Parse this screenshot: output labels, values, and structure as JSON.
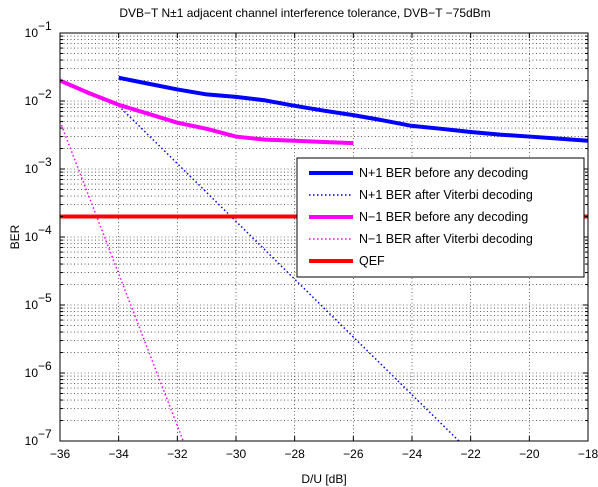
{
  "chart_data": {
    "type": "line",
    "title": "DVB−T N±1 adjacent channel interference tolerance, DVB−T −75dBm",
    "xlabel": "D/U [dB]",
    "ylabel": "BER",
    "x_scale": "linear",
    "y_scale": "log",
    "xlim": [
      -36,
      -18
    ],
    "ylim": [
      1e-07,
      0.1
    ],
    "grid": true,
    "legend_position": "right",
    "x_ticks": [
      "−36",
      "−34",
      "−32",
      "−30",
      "−28",
      "−26",
      "−24",
      "−22",
      "−20",
      "−18"
    ],
    "y_ticks": [
      {
        "base": "10",
        "exp": "−7"
      },
      {
        "base": "10",
        "exp": "−6"
      },
      {
        "base": "10",
        "exp": "−5"
      },
      {
        "base": "10",
        "exp": "−4"
      },
      {
        "base": "10",
        "exp": "−3"
      },
      {
        "base": "10",
        "exp": "−2"
      },
      {
        "base": "10",
        "exp": "−1"
      }
    ],
    "series": [
      {
        "name": "N+1 BER before any decoding",
        "color": "#0000ff",
        "style": "solid",
        "width": 4,
        "x": [
          -34,
          -33,
          -32,
          -31,
          -30,
          -29,
          -28,
          -27,
          -26,
          -25,
          -24,
          -23,
          -22,
          -21,
          -20,
          -19,
          -18
        ],
        "y": [
          0.022,
          0.018,
          0.0148,
          0.0125,
          0.0115,
          0.0102,
          0.0085,
          0.0072,
          0.0062,
          0.0052,
          0.0043,
          0.0039,
          0.0035,
          0.0032,
          0.003,
          0.0028,
          0.0026
        ]
      },
      {
        "name": "N+1 BER after Viterbi decoding",
        "color": "#0000ff",
        "style": "dotted",
        "width": 1.5,
        "x": [
          -34,
          -22.4
        ],
        "y": [
          0.0085,
          1e-07
        ]
      },
      {
        "name": "N−1 BER before any decoding",
        "color": "#ff00ff",
        "style": "solid",
        "width": 4,
        "x": [
          -36,
          -35,
          -34,
          -33,
          -32,
          -31,
          -30,
          -29,
          -28,
          -27,
          -26
        ],
        "y": [
          0.02,
          0.013,
          0.0088,
          0.0065,
          0.0048,
          0.0039,
          0.003,
          0.0027,
          0.0026,
          0.0025,
          0.0024
        ]
      },
      {
        "name": "N−1 BER after Viterbi decoding",
        "color": "#ff00ff",
        "style": "dotted",
        "width": 1.5,
        "x": [
          -36,
          -31.8
        ],
        "y": [
          0.005,
          1e-07
        ]
      },
      {
        "name": "QEF",
        "color": "#ff0000",
        "style": "solid",
        "width": 4,
        "x": [
          -36,
          -18
        ],
        "y": [
          0.0002,
          0.0002
        ]
      }
    ]
  }
}
